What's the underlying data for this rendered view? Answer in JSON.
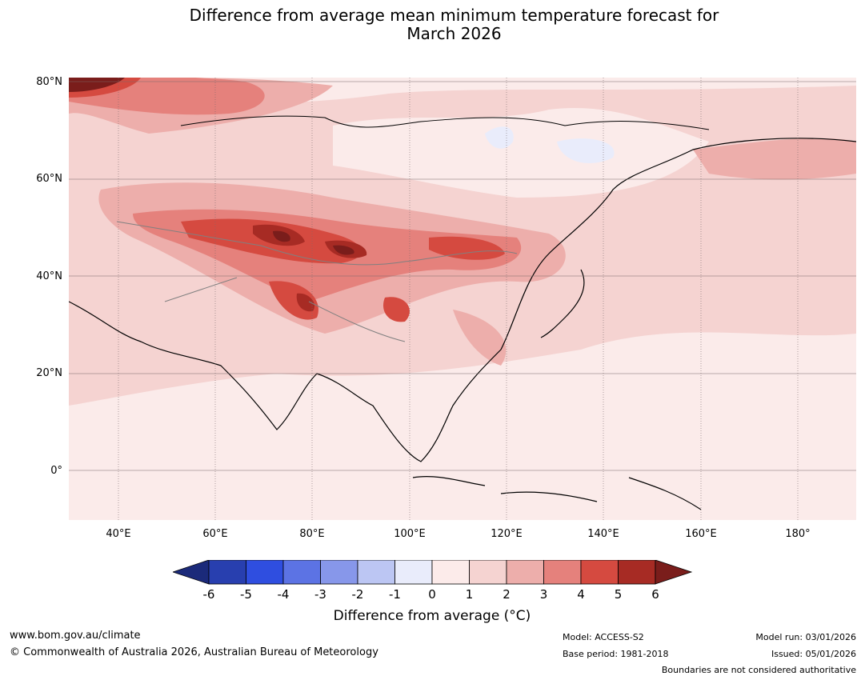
{
  "title": {
    "line1": "Difference from average mean minimum temperature forecast for",
    "line2": "March 2026"
  },
  "map": {
    "lat_labels": [
      "80°N",
      "60°N",
      "40°N",
      "20°N",
      "0°"
    ],
    "lon_labels": [
      "40°E",
      "60°E",
      "80°E",
      "100°E",
      "120°E",
      "140°E",
      "160°E",
      "180°"
    ],
    "land_color": "#fbebea"
  },
  "colorbar": {
    "ticks": [
      "-6",
      "-5",
      "-4",
      "-3",
      "-2",
      "-1",
      "0",
      "1",
      "2",
      "3",
      "4",
      "5",
      "6"
    ],
    "colors": [
      "#1b2a7a",
      "#283faf",
      "#2f4ee0",
      "#5c73e4",
      "#8797ea",
      "#bcc6f3",
      "#e9ecfb",
      "#fcebea",
      "#f5d3d1",
      "#edaeab",
      "#e5817c",
      "#d54a40",
      "#a72b24",
      "#7a1d1b"
    ],
    "label": "Difference from average (°C)"
  },
  "footer": {
    "url": "www.bom.gov.au/climate",
    "copyright": "© Commonwealth of Australia 2026, Australian Bureau of Meteorology",
    "model": "Model: ACCESS-S2",
    "base_period": "Base period: 1981-2018",
    "model_run": "Model run: 03/01/2026",
    "issued": "Issued: 05/01/2026",
    "disclaimer": "Boundaries are not considered authoritative"
  }
}
